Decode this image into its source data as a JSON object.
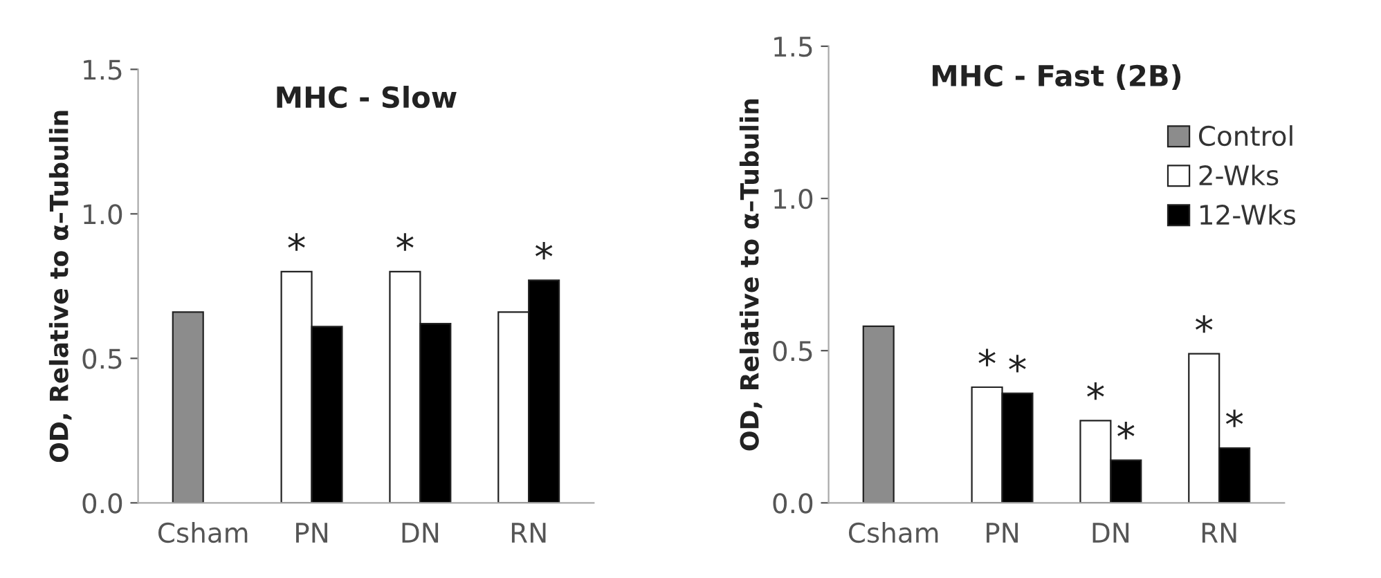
{
  "chart_data": [
    {
      "type": "bar",
      "title": "MHC - Slow",
      "ylabel": "OD, Relative to α–Tubulin",
      "categories": [
        "Csham",
        "PN",
        "DN",
        "RN"
      ],
      "series": [
        {
          "color": "#8c8c8c",
          "values": [
            0.66,
            null,
            null,
            null
          ]
        },
        {
          "color": "#ffffff",
          "values": [
            null,
            0.8,
            0.8,
            0.66
          ]
        },
        {
          "color": "#000000",
          "values": [
            null,
            0.61,
            0.62,
            0.77
          ]
        }
      ],
      "ylim": [
        0,
        1.5
      ],
      "yticks": [
        {
          "value": 0,
          "label": "0.0"
        },
        {
          "value": 0.5,
          "label": "0.5"
        },
        {
          "value": 1.0,
          "label": "1.0"
        },
        {
          "value": 1.5,
          "label": "1.5"
        }
      ],
      "annotations": [
        {
          "text": "*",
          "x": "PN",
          "y": 0.8
        },
        {
          "text": "*",
          "x": "DN",
          "y": 0.8
        },
        {
          "text": "*",
          "x": "RN",
          "y": 0.77
        }
      ],
      "grid": false,
      "legend": false
    },
    {
      "type": "bar",
      "title": "MHC - Fast (2B)",
      "ylabel": "OD, Relative to α–Tubulin",
      "categories": [
        "Csham",
        "PN",
        "DN",
        "RN"
      ],
      "series": [
        {
          "name": "Control",
          "color": "#8c8c8c",
          "values": [
            0.58,
            null,
            null,
            null
          ]
        },
        {
          "name": "2-Wks",
          "color": "#ffffff",
          "values": [
            null,
            0.38,
            0.27,
            0.49
          ]
        },
        {
          "name": "12-Wks",
          "color": "#000000",
          "values": [
            null,
            0.36,
            0.14,
            0.18
          ]
        }
      ],
      "ylim": [
        0,
        1.5
      ],
      "yticks": [
        {
          "value": 0,
          "label": "0.0"
        },
        {
          "value": 0.5,
          "label": "0.5"
        },
        {
          "value": 1.0,
          "label": "1.0"
        },
        {
          "value": 1.5,
          "label": "1.5"
        }
      ],
      "annotations": [
        {
          "text": "*",
          "x": "PN",
          "y": 0.38
        },
        {
          "text": "*",
          "x": "PN",
          "y": 0.36
        },
        {
          "text": "*",
          "x": "DN",
          "y": 0.27
        },
        {
          "text": "*",
          "x": "DN",
          "y": 0.14
        },
        {
          "text": "*",
          "x": "RN",
          "y": 0.49
        },
        {
          "text": "*",
          "x": "RN",
          "y": 0.18
        }
      ],
      "grid": false,
      "legend": "top right"
    }
  ]
}
